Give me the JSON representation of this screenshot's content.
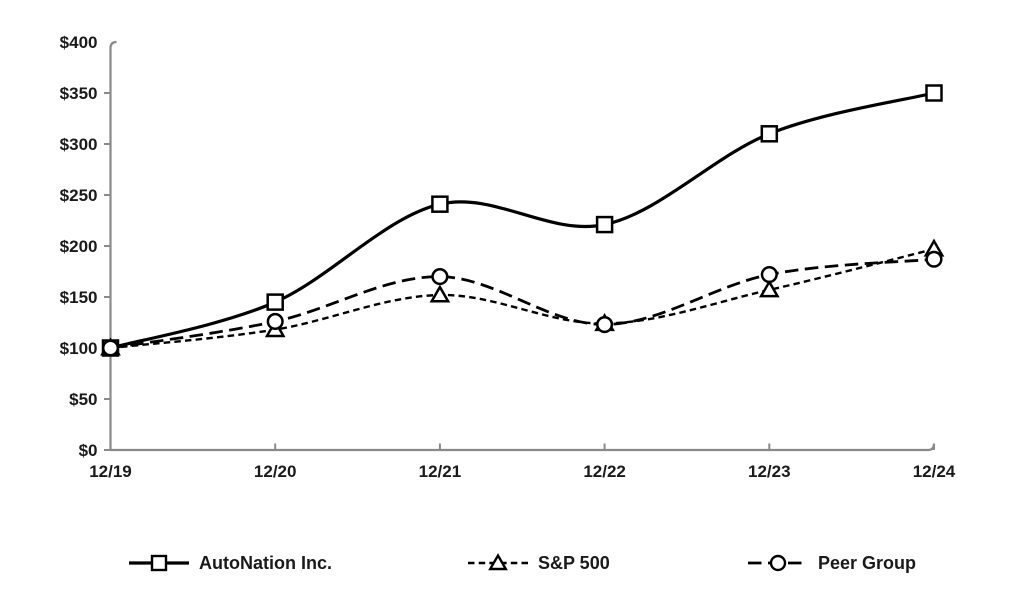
{
  "chart_data": {
    "type": "line",
    "title": "",
    "categories": [
      "12/19",
      "12/20",
      "12/21",
      "12/22",
      "12/23",
      "12/24"
    ],
    "series": [
      {
        "name": "AutoNation Inc.",
        "marker": "square",
        "line_style": "solid",
        "values": [
          100,
          145,
          241,
          221,
          310,
          350
        ]
      },
      {
        "name": "S&P 500",
        "marker": "triangle",
        "line_style": "short-dash",
        "values": [
          100,
          118,
          152,
          124,
          157,
          197
        ]
      },
      {
        "name": "Peer Group",
        "marker": "circle",
        "line_style": "long-dash",
        "values": [
          100,
          126,
          170,
          123,
          172,
          187
        ]
      }
    ],
    "y_ticks": [
      "$400",
      "$350",
      "$300",
      "$250",
      "$200",
      "$150",
      "$100",
      "$50",
      "$0"
    ],
    "y_tick_values": [
      400,
      350,
      300,
      250,
      200,
      150,
      100,
      50,
      0
    ],
    "ylim": [
      0,
      400
    ],
    "xlabel": "",
    "ylabel": "",
    "grid": false,
    "legend_position": "bottom",
    "colors": {
      "line": "#000000",
      "marker_fill": "#ffffff",
      "axis": "#8a8a8a",
      "text": "#1a1a1a",
      "background": "#ffffff"
    }
  }
}
